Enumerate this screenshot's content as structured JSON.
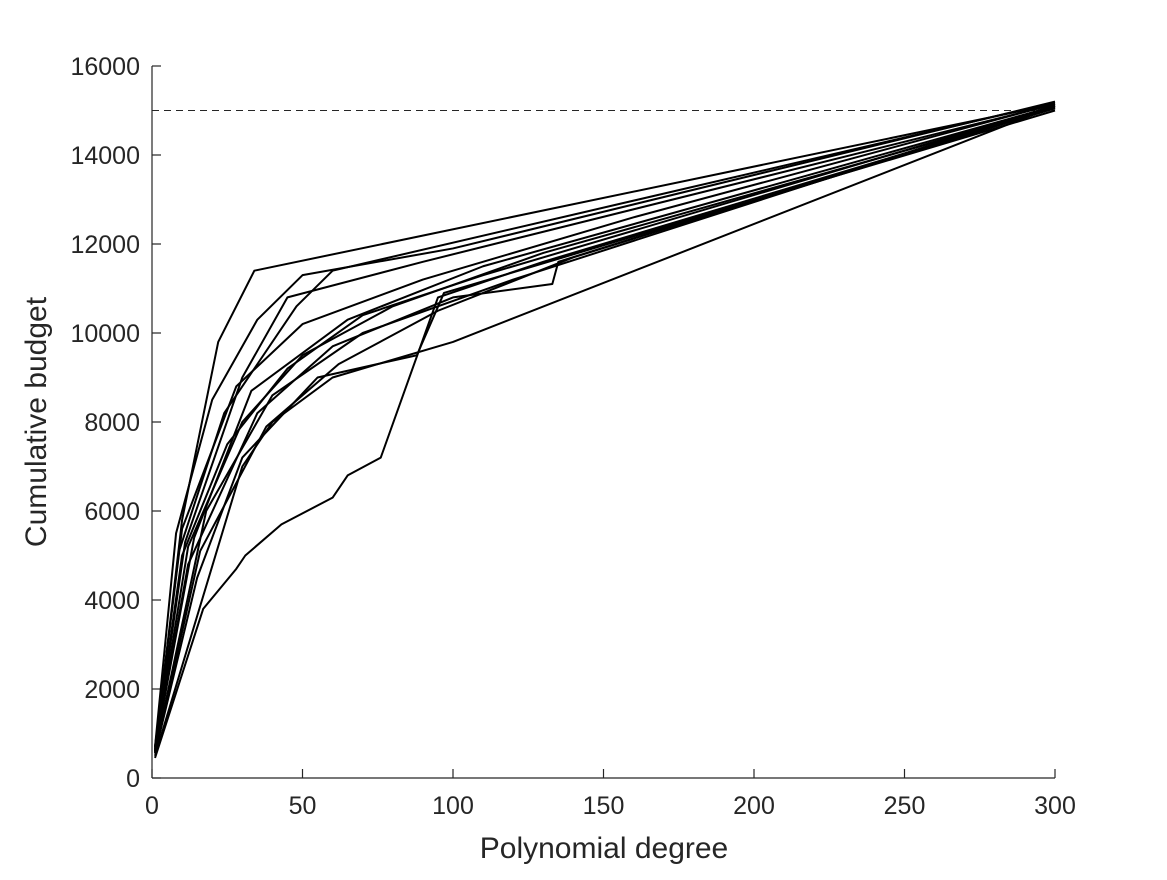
{
  "chart_data": {
    "type": "line",
    "x_label": "Polynomial degree",
    "y_label": "Cumulative budget",
    "xlim": [
      0,
      300
    ],
    "ylim": [
      0,
      16000
    ],
    "xticks": [
      0,
      50,
      100,
      150,
      200,
      250,
      300
    ],
    "yticks": [
      0,
      2000,
      4000,
      6000,
      8000,
      10000,
      12000,
      14000,
      16000
    ],
    "reference_line": 15000,
    "series": [
      {
        "color": "#000000",
        "x": [
          1,
          10,
          22,
          34,
          300
        ],
        "values": [
          600,
          5800,
          9800,
          11400,
          15150
        ]
      },
      {
        "color": "#000000",
        "x": [
          1,
          17,
          28,
          31,
          43,
          60,
          65,
          76,
          95,
          130,
          300
        ],
        "values": [
          450,
          3800,
          4700,
          5000,
          5700,
          6300,
          6800,
          7200,
          10800,
          11600,
          15050
        ]
      },
      {
        "color": "#000000",
        "x": [
          1,
          30,
          40,
          60,
          100,
          300
        ],
        "values": [
          500,
          7000,
          8000,
          9000,
          9800,
          15100
        ]
      },
      {
        "color": "#000000",
        "x": [
          1,
          8,
          20,
          35,
          50,
          100,
          300
        ],
        "values": [
          700,
          5500,
          8500,
          10300,
          11300,
          11900,
          15200
        ]
      },
      {
        "color": "#000000",
        "x": [
          1,
          10,
          25,
          45,
          70,
          110,
          300
        ],
        "values": [
          650,
          5000,
          7500,
          9200,
          10400,
          11300,
          15100
        ]
      },
      {
        "color": "#000000",
        "x": [
          1,
          12,
          30,
          50,
          80,
          130,
          300
        ],
        "values": [
          600,
          5200,
          8000,
          9500,
          10600,
          11800,
          15050
        ]
      },
      {
        "color": "#000000",
        "x": [
          1,
          15,
          30,
          55,
          88,
          97,
          300
        ],
        "values": [
          550,
          4500,
          7200,
          9000,
          9500,
          10900,
          15000
        ]
      },
      {
        "color": "#000000",
        "x": [
          1,
          10,
          28,
          50,
          90,
          160,
          300
        ],
        "values": [
          700,
          5600,
          8800,
          10200,
          11200,
          12600,
          15150
        ]
      },
      {
        "color": "#000000",
        "x": [
          1,
          12,
          35,
          60,
          100,
          133,
          135,
          300
        ],
        "values": [
          620,
          4800,
          8200,
          9700,
          10800,
          11100,
          11600,
          15080
        ]
      },
      {
        "color": "#000000",
        "x": [
          1,
          18,
          40,
          70,
          120,
          300
        ],
        "values": [
          580,
          6000,
          8600,
          10000,
          11200,
          15120
        ]
      },
      {
        "color": "#000000",
        "x": [
          1,
          9,
          24,
          48,
          60,
          300
        ],
        "values": [
          680,
          5100,
          8200,
          10600,
          11400,
          15180
        ]
      },
      {
        "color": "#000000",
        "x": [
          1,
          14,
          33,
          65,
          110,
          300
        ],
        "values": [
          640,
          5400,
          8700,
          10300,
          11500,
          15100
        ]
      },
      {
        "color": "#000000",
        "x": [
          1,
          11,
          30,
          45,
          90,
          300
        ],
        "values": [
          600,
          5300,
          9000,
          10800,
          11600,
          15140
        ]
      },
      {
        "color": "#000000",
        "x": [
          1,
          16,
          38,
          62,
          95,
          140,
          300
        ],
        "values": [
          560,
          5100,
          7900,
          9300,
          10500,
          11700,
          15060
        ]
      }
    ]
  }
}
